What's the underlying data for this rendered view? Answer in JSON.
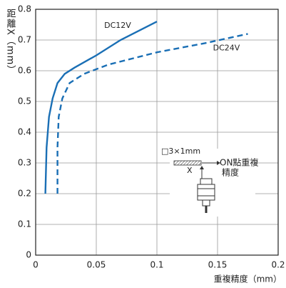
{
  "chart_data": {
    "type": "line",
    "y_label": "距離X（mm）",
    "x_label": "重複精度（mm）",
    "series": [
      {
        "name": "DC12V",
        "color": "#1a6fb5",
        "dashed": false,
        "x": [
          0.008,
          0.009,
          0.011,
          0.014,
          0.018,
          0.024,
          0.032,
          0.05,
          0.07,
          0.1
        ],
        "values": [
          0.2,
          0.35,
          0.45,
          0.51,
          0.56,
          0.59,
          0.61,
          0.65,
          0.7,
          0.76
        ]
      },
      {
        "name": "DC24V",
        "color": "#1a6fb5",
        "dashed": true,
        "x": [
          0.018,
          0.018,
          0.019,
          0.022,
          0.028,
          0.04,
          0.06,
          0.1,
          0.14,
          0.175
        ],
        "values": [
          0.2,
          0.35,
          0.45,
          0.51,
          0.56,
          0.59,
          0.62,
          0.66,
          0.69,
          0.72
        ]
      }
    ],
    "xlim": [
      0,
      0.2
    ],
    "ylim": [
      0,
      0.8
    ],
    "xticks": [
      0,
      0.05,
      0.1,
      0.15,
      0.2
    ],
    "yticks": [
      0,
      0.1,
      0.2,
      0.3,
      0.4,
      0.5,
      0.6,
      0.7,
      0.8
    ],
    "grid": true,
    "annotations": {
      "target": "□3×1mm",
      "axis_mark": "X",
      "note_line1": "ON點重複",
      "note_line2": "精度"
    }
  }
}
